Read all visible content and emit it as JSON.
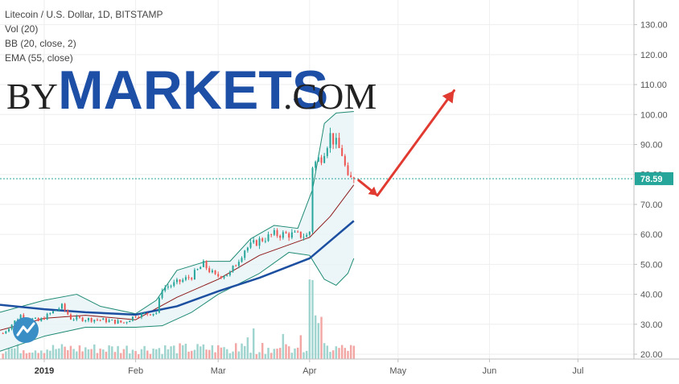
{
  "header": {
    "lines": [
      "Litecoin / U.S. Dollar, 1D, BITSTAMP",
      "Vol (20)",
      "BB (20, close, 2)",
      "EMA (55, close)"
    ]
  },
  "logo": {
    "prefix": "BY",
    "main": "MARKETS",
    "suffix": ".COM"
  },
  "colors": {
    "up": "#26a69a",
    "down": "#ef5350",
    "bb_band": "#1e8a74",
    "bb_mid": "#8e1a1a",
    "ema": "#1c4fa0",
    "arrow": "#e03a31",
    "price_line": "#26a69a",
    "vol_up": "#9fd4cf",
    "vol_down": "#f2a7a5"
  },
  "chart_data": {
    "type": "candlestick",
    "title": "Litecoin / U.S. Dollar, 1D, BITSTAMP",
    "ylim": [
      20,
      135
    ],
    "y_ticks": [
      "130.00",
      "120.00",
      "110.00",
      "100.00",
      "90.00",
      "80.00",
      "70.00",
      "60.00",
      "50.00",
      "40.00",
      "30.00",
      "20.00"
    ],
    "x_ticks": [
      {
        "label": "2019",
        "date": "2019-01-01",
        "bold": true
      },
      {
        "label": "Feb",
        "date": "2019-02-01",
        "bold": false
      },
      {
        "label": "Mar",
        "date": "2019-03-01",
        "bold": false
      },
      {
        "label": "Apr",
        "date": "2019-04-01",
        "bold": false
      },
      {
        "label": "May",
        "date": "2019-05-01",
        "bold": false
      },
      {
        "label": "Jun",
        "date": "2019-06-01",
        "bold": false
      },
      {
        "label": "Jul",
        "date": "2019-07-01",
        "bold": false
      }
    ],
    "xrange": [
      "2018-12-17",
      "2019-07-20"
    ],
    "last_price": "78.59",
    "price_key_points": [
      [
        "2018-12-18",
        27
      ],
      [
        "2018-12-24",
        33
      ],
      [
        "2018-12-30",
        31
      ],
      [
        "2019-01-07",
        36
      ],
      [
        "2019-01-10",
        32
      ],
      [
        "2019-01-20",
        31.5
      ],
      [
        "2019-01-28",
        30.5
      ],
      [
        "2019-02-01",
        33
      ],
      [
        "2019-02-08",
        34
      ],
      [
        "2019-02-10",
        42
      ],
      [
        "2019-02-13",
        43
      ],
      [
        "2019-02-20",
        46
      ],
      [
        "2019-02-24",
        50
      ],
      [
        "2019-02-28",
        46
      ],
      [
        "2019-03-05",
        47
      ],
      [
        "2019-03-10",
        55
      ],
      [
        "2019-03-15",
        58
      ],
      [
        "2019-03-20",
        60
      ],
      [
        "2019-03-25",
        60
      ],
      [
        "2019-03-31",
        59.5
      ],
      [
        "2019-04-01",
        61
      ],
      [
        "2019-04-02",
        83
      ],
      [
        "2019-04-05",
        86
      ],
      [
        "2019-04-08",
        93
      ],
      [
        "2019-04-12",
        87
      ],
      [
        "2019-04-14",
        78
      ],
      [
        "2019-04-16",
        78.59
      ]
    ],
    "ema_points": [
      [
        "2018-12-17",
        36.5
      ],
      [
        "2019-01-01",
        35
      ],
      [
        "2019-01-15",
        34
      ],
      [
        "2019-02-01",
        33.2
      ],
      [
        "2019-02-15",
        36
      ],
      [
        "2019-03-01",
        41
      ],
      [
        "2019-03-15",
        45.5
      ],
      [
        "2019-04-01",
        52
      ],
      [
        "2019-04-16",
        64.5
      ]
    ],
    "bb_mid_points": [
      [
        "2018-12-17",
        28
      ],
      [
        "2019-01-01",
        32
      ],
      [
        "2019-01-15",
        33
      ],
      [
        "2019-02-01",
        31.5
      ],
      [
        "2019-02-15",
        39
      ],
      [
        "2019-03-01",
        45
      ],
      [
        "2019-03-15",
        53
      ],
      [
        "2019-04-01",
        59
      ],
      [
        "2019-04-08",
        66
      ],
      [
        "2019-04-16",
        76.5
      ]
    ],
    "bb_upper_points": [
      [
        "2018-12-17",
        34
      ],
      [
        "2019-01-01",
        38
      ],
      [
        "2019-01-12",
        40
      ],
      [
        "2019-01-20",
        36
      ],
      [
        "2019-02-01",
        33.5
      ],
      [
        "2019-02-08",
        38
      ],
      [
        "2019-02-15",
        48
      ],
      [
        "2019-02-25",
        51
      ],
      [
        "2019-03-05",
        51
      ],
      [
        "2019-03-12",
        58.5
      ],
      [
        "2019-03-20",
        63
      ],
      [
        "2019-03-28",
        62
      ],
      [
        "2019-04-02",
        75
      ],
      [
        "2019-04-06",
        97
      ],
      [
        "2019-04-10",
        100.5
      ],
      [
        "2019-04-16",
        101
      ]
    ],
    "bb_lower_points": [
      [
        "2018-12-17",
        21
      ],
      [
        "2019-01-01",
        26
      ],
      [
        "2019-01-15",
        29
      ],
      [
        "2019-02-01",
        29
      ],
      [
        "2019-02-10",
        29.5
      ],
      [
        "2019-02-20",
        34
      ],
      [
        "2019-03-01",
        40
      ],
      [
        "2019-03-15",
        47
      ],
      [
        "2019-03-25",
        54
      ],
      [
        "2019-04-01",
        53
      ],
      [
        "2019-04-06",
        45
      ],
      [
        "2019-04-10",
        43
      ],
      [
        "2019-04-14",
        47
      ],
      [
        "2019-04-16",
        52
      ]
    ],
    "forecast_arrow": [
      [
        "2019-04-16",
        78.59
      ],
      [
        "2019-04-24",
        73
      ],
      [
        "2019-05-20",
        108
      ]
    ]
  }
}
